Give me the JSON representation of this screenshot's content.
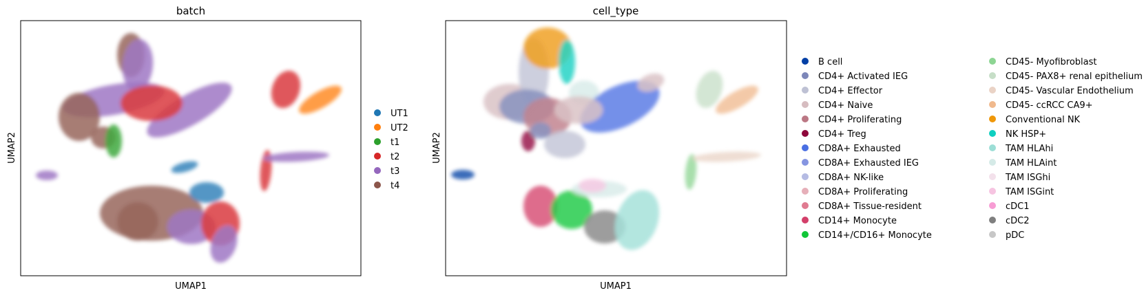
{
  "chart_data": [
    {
      "type": "scatter",
      "title": "batch",
      "xlabel": "UMAP1",
      "ylabel": "UMAP2",
      "grid": false,
      "ticks": "none",
      "legend_placement": "right",
      "legend_entries": [
        {
          "label": "UT1",
          "color": "#1f77b4"
        },
        {
          "label": "UT2",
          "color": "#ff7f0e"
        },
        {
          "label": "t1",
          "color": "#2ca02c"
        },
        {
          "label": "t2",
          "color": "#d62728"
        },
        {
          "label": "t3",
          "color": "#9467bd"
        },
        {
          "label": "t4",
          "color": "#8c564b"
        }
      ],
      "note_points": "dense UMAP point cloud, individual coordinates not recoverable"
    },
    {
      "type": "scatter",
      "title": "cell_type",
      "xlabel": "UMAP1",
      "ylabel": "UMAP2",
      "grid": false,
      "ticks": "none",
      "legend_placement": "right",
      "legend_columns": 2,
      "legend_entries": [
        {
          "label": "B cell",
          "color": "#023fa5"
        },
        {
          "label": "CD4+ Activated IEG",
          "color": "#7d87b9"
        },
        {
          "label": "CD4+ Effector",
          "color": "#bec1d4"
        },
        {
          "label": "CD4+ Naive",
          "color": "#d6bcc0"
        },
        {
          "label": "CD4+ Proliferating",
          "color": "#bb7784"
        },
        {
          "label": "CD4+ Treg",
          "color": "#8e063b"
        },
        {
          "label": "CD8A+ Exhausted",
          "color": "#4a6fe3"
        },
        {
          "label": "CD8A+ Exhausted IEG",
          "color": "#8595e1"
        },
        {
          "label": "CD8A+ NK-like",
          "color": "#b5bbe3"
        },
        {
          "label": "CD8A+ Proliferating",
          "color": "#e6afb9"
        },
        {
          "label": "CD8A+ Tissue-resident",
          "color": "#e07b91"
        },
        {
          "label": "CD14+ Monocyte",
          "color": "#d33f6a"
        },
        {
          "label": "CD14+/CD16+ Monocyte",
          "color": "#11c638"
        },
        {
          "label": "CD45- Myofibroblast",
          "color": "#8dd593"
        },
        {
          "label": "CD45- PAX8+ renal epithelium",
          "color": "#c6dec7"
        },
        {
          "label": "CD45- Vascular Endothelium",
          "color": "#ead3c6"
        },
        {
          "label": "CD45- ccRCC CA9+",
          "color": "#f0b98d"
        },
        {
          "label": "Conventional NK",
          "color": "#ef9708"
        },
        {
          "label": "NK HSP+",
          "color": "#0fcfc0"
        },
        {
          "label": "TAM HLAhi",
          "color": "#9cded6"
        },
        {
          "label": "TAM HLAint",
          "color": "#d5eae7"
        },
        {
          "label": "TAM ISGhi",
          "color": "#f3e1eb"
        },
        {
          "label": "TAM ISGint",
          "color": "#f6c4e1"
        },
        {
          "label": "cDC1",
          "color": "#f79cd4"
        },
        {
          "label": "cDC2",
          "color": "#7f7f7f"
        },
        {
          "label": "pDC",
          "color": "#c7c7c7"
        }
      ]
    }
  ]
}
